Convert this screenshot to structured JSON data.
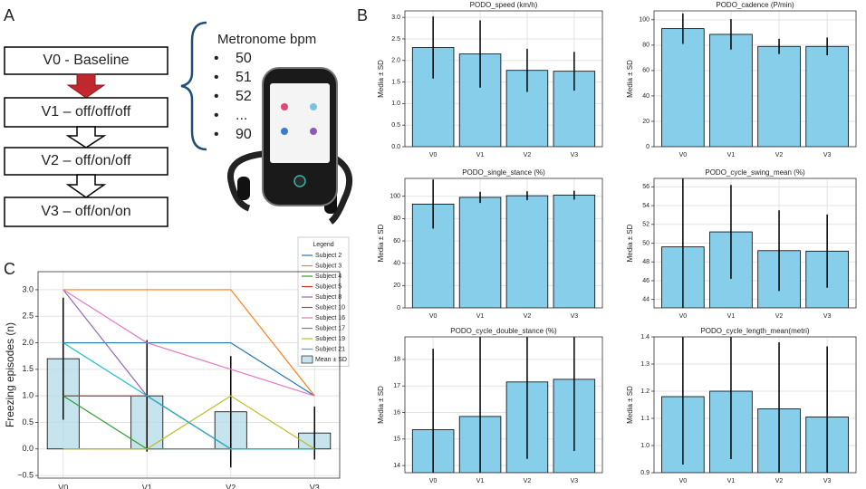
{
  "panel_labels": [
    "A",
    "B",
    "C"
  ],
  "diagram": {
    "steps": [
      "V0 - Baseline",
      "V1 – off/off/off",
      "V2 – off/on/off",
      "V3 – off/on/on"
    ],
    "metronome_title": "Metronome bpm",
    "metronome_items": [
      "50",
      "51",
      "52",
      "...",
      "90"
    ]
  },
  "chart_data": [
    {
      "type": "line",
      "ylabel": "Freezing episodes (n)",
      "categories": [
        "V0",
        "V1",
        "V2",
        "V3"
      ],
      "ylim": [
        -0.55,
        3.34
      ],
      "yticks": [
        {
          "value": -0.5,
          "label": "−0.5"
        },
        {
          "value": 0,
          "label": "0.0"
        },
        0.5,
        {
          "value": 1,
          "label": "1.0"
        },
        1.5,
        {
          "value": 2,
          "label": "2.0"
        },
        2.5,
        {
          "value": 3,
          "label": "3.0"
        }
      ],
      "grid": true,
      "legend_title": "Legend",
      "legend": "upper right",
      "series": [
        {
          "name": "Subject 2",
          "color": "#1f77b4",
          "values": [
            2,
            2,
            2,
            1
          ]
        },
        {
          "name": "Subject 3",
          "color": "#ff7f0e",
          "values": [
            3,
            3,
            3,
            1
          ]
        },
        {
          "name": "Subject 4",
          "color": "#2ca02c",
          "values": [
            1,
            0,
            0,
            0
          ]
        },
        {
          "name": "Subject 5",
          "color": "#d62728",
          "values": [
            1,
            1,
            0,
            0
          ]
        },
        {
          "name": "Subject 8",
          "color": "#9467bd",
          "values": [
            3,
            1,
            0,
            0
          ]
        },
        {
          "name": "Subject 10",
          "color": "#8c564b",
          "values": [
            1,
            1,
            0,
            0
          ]
        },
        {
          "name": "Subject 16",
          "color": "#e377c2",
          "values": [
            3,
            2,
            1.5,
            1
          ]
        },
        {
          "name": "Subject 17",
          "color": "#7f7f7f",
          "values": [
            0,
            0,
            0,
            0
          ]
        },
        {
          "name": "Subject 19",
          "color": "#bcbd22",
          "values": [
            0,
            0,
            1,
            0
          ]
        },
        {
          "name": "Subject 21",
          "color": "#17becf",
          "values": [
            2,
            1,
            0,
            0
          ]
        }
      ],
      "mean": {
        "name": "Mean ± SD",
        "color": "#add8e6",
        "values": [
          1.7,
          1.0,
          0.7,
          0.3
        ],
        "errors": [
          1.15,
          1.05,
          1.05,
          0.5
        ]
      }
    },
    {
      "type": "bar",
      "title": "PODO_speed (km/h)",
      "ylabel": "Media ± SD",
      "categories": [
        "V0",
        "V1",
        "V2",
        "V3"
      ],
      "values": [
        2.3,
        2.15,
        1.77,
        1.75
      ],
      "errors": [
        0.72,
        0.78,
        0.5,
        0.45
      ],
      "color": "#87ceeb",
      "ylim": [
        0,
        3.15
      ],
      "yticks": [
        {
          "value": 0,
          "label": "0.0"
        },
        0.5,
        {
          "value": 1,
          "label": "1.0"
        },
        1.5,
        {
          "value": 2,
          "label": "2.0"
        },
        2.5,
        {
          "value": 3,
          "label": "3.0"
        }
      ],
      "grid": true
    },
    {
      "type": "bar",
      "title": "PODO_cadence (P/min)",
      "ylabel": "Media ± SD",
      "categories": [
        "V0",
        "V1",
        "V2",
        "V3"
      ],
      "values": [
        93,
        88.5,
        79,
        79
      ],
      "errors": [
        12,
        12,
        6,
        7
      ],
      "color": "#87ceeb",
      "ylim": [
        0,
        107
      ],
      "yticks": [
        0,
        20,
        40,
        60,
        80,
        100
      ],
      "grid": true
    },
    {
      "type": "bar",
      "title": "PODO_single_stance (%)",
      "ylabel": "Media ± SD",
      "categories": [
        "V0",
        "V1",
        "V2",
        "V3"
      ],
      "values": [
        93,
        99,
        100.5,
        101
      ],
      "errors": [
        22,
        5,
        4,
        4
      ],
      "color": "#87ceeb",
      "ylim": [
        0,
        116
      ],
      "yticks": [
        0,
        20,
        40,
        60,
        80,
        100
      ],
      "grid": true
    },
    {
      "type": "bar",
      "title": "PODO_cycle_swing_mean (%)",
      "ylabel": "Media ± SD",
      "categories": [
        "V0",
        "V1",
        "V2",
        "V3"
      ],
      "values": [
        49.6,
        51.2,
        49.2,
        49.15
      ],
      "errors": [
        7.5,
        5,
        4.3,
        3.9
      ],
      "color": "#87ceeb",
      "ylim": [
        43.1,
        56.9
      ],
      "yticks": [
        44,
        46,
        48,
        50,
        52,
        54,
        56
      ],
      "grid": true
    },
    {
      "type": "bar",
      "title": "PODO_cycle_double_stance (%)",
      "ylabel": "Media ± SD",
      "categories": [
        "V0",
        "V1",
        "V2",
        "V3"
      ],
      "values": [
        15.35,
        15.85,
        17.15,
        17.25
      ],
      "errors": [
        3.05,
        3.5,
        2.9,
        2.7
      ],
      "color": "#87ceeb",
      "ylim": [
        13.73,
        18.85
      ],
      "yticks": [
        14,
        15,
        16,
        17,
        18
      ],
      "grid": true
    },
    {
      "type": "bar",
      "title": "PODO_cycle_length_mean(metri)",
      "ylabel": "Media ± SD",
      "categories": [
        "V0",
        "V1",
        "V2",
        "V3"
      ],
      "values": [
        1.18,
        1.2,
        1.135,
        1.105
      ],
      "errors": [
        0.25,
        0.25,
        0.245,
        0.26
      ],
      "color": "#87ceeb",
      "ylim": [
        0.9,
        1.4
      ],
      "yticks": [
        0.9,
        {
          "value": 1,
          "label": "1.0"
        },
        1.1,
        1.2,
        1.3,
        1.4
      ],
      "grid": true
    }
  ]
}
